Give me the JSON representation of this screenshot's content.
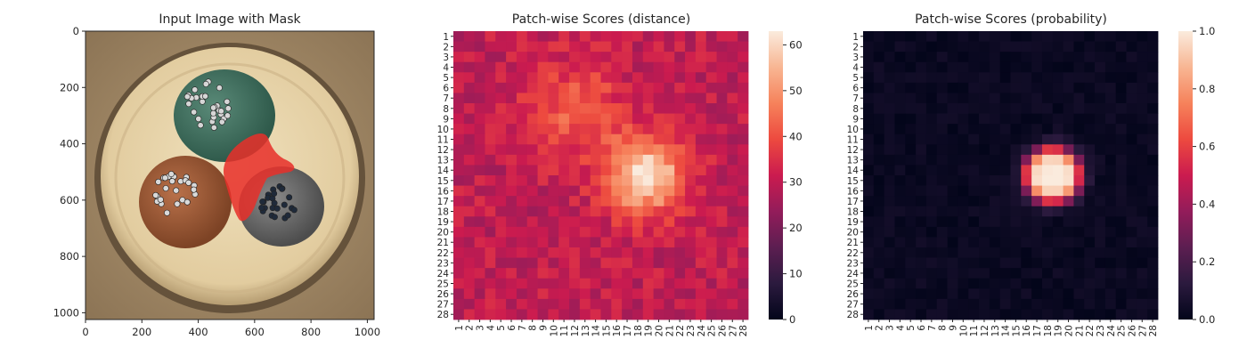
{
  "figure": {
    "panel1_title": "Input Image with Mask",
    "panel2_title": "Patch-wise Scores (distance)",
    "panel3_title": "Patch-wise Scores (probability)"
  },
  "chart_data": [
    {
      "type": "image",
      "title": "Input Image with Mask",
      "xlim": [
        0,
        1024
      ],
      "ylim": [
        1024,
        0
      ],
      "xticks": [
        0,
        200,
        400,
        600,
        800,
        1000
      ],
      "yticks": [
        0,
        200,
        400,
        600,
        800,
        1000
      ],
      "image_content": {
        "background": "brown textured surface",
        "objects": [
          "cream ring housing",
          "green wire with silver strands",
          "brown wire with silver strands",
          "grey wire with dark strands",
          "red mask region"
        ],
        "mask_color": "#e8302a"
      }
    },
    {
      "type": "heatmap",
      "title": "Patch-wise Scores (distance)",
      "rows": 28,
      "cols": 28,
      "row_labels": [
        "1",
        "2",
        "3",
        "4",
        "5",
        "6",
        "7",
        "8",
        "9",
        "10",
        "11",
        "12",
        "13",
        "14",
        "15",
        "16",
        "17",
        "18",
        "19",
        "20",
        "21",
        "22",
        "23",
        "24",
        "25",
        "26",
        "27",
        "28"
      ],
      "col_labels": [
        "1",
        "2",
        "3",
        "4",
        "5",
        "6",
        "7",
        "8",
        "9",
        "10",
        "11",
        "12",
        "13",
        "14",
        "15",
        "16",
        "17",
        "18",
        "19",
        "20",
        "21",
        "22",
        "23",
        "24",
        "25",
        "26",
        "27",
        "28"
      ],
      "colorbar": {
        "range": [
          0,
          63
        ],
        "ticks": [
          0,
          10,
          20,
          30,
          40,
          50,
          60
        ],
        "colormap": "rocket"
      },
      "estimated_pattern": {
        "baseline": 30,
        "hotspot_center": {
          "row": 14.5,
          "col": 18.8
        },
        "hotspot_peak": 62,
        "secondary_bump_center": {
          "row": 8,
          "col": 12
        },
        "secondary_bump_peak": 42
      }
    },
    {
      "type": "heatmap",
      "title": "Patch-wise Scores (probability)",
      "rows": 28,
      "cols": 28,
      "row_labels": [
        "1",
        "2",
        "3",
        "4",
        "5",
        "6",
        "7",
        "8",
        "9",
        "10",
        "11",
        "12",
        "13",
        "14",
        "15",
        "16",
        "17",
        "18",
        "19",
        "20",
        "21",
        "22",
        "23",
        "24",
        "25",
        "26",
        "27",
        "28"
      ],
      "col_labels": [
        "1",
        "2",
        "3",
        "4",
        "5",
        "6",
        "7",
        "8",
        "9",
        "10",
        "11",
        "12",
        "13",
        "14",
        "15",
        "16",
        "17",
        "18",
        "19",
        "20",
        "21",
        "22",
        "23",
        "24",
        "25",
        "26",
        "27",
        "28"
      ],
      "colorbar": {
        "range": [
          0,
          1
        ],
        "ticks": [
          "0.0",
          "0.2",
          "0.4",
          "0.6",
          "0.8",
          "1.0"
        ],
        "colormap": "rocket"
      },
      "estimated_pattern": {
        "baseline": 0.02,
        "hotspot_center": {
          "row": 14.5,
          "col": 18.5
        },
        "hotspot_peak": 1.0
      }
    }
  ]
}
